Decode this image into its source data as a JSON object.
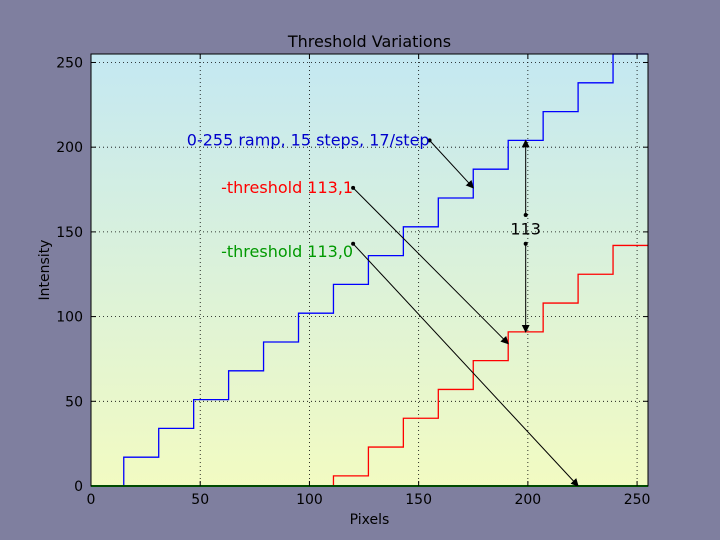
{
  "chart_data": {
    "type": "line",
    "title": "Threshold Variations",
    "xlabel": "Pixels",
    "ylabel": "Intensity",
    "xlim": [
      0,
      255
    ],
    "ylim": [
      0,
      255
    ],
    "xticks": [
      0,
      50,
      100,
      150,
      200,
      250
    ],
    "yticks": [
      0,
      50,
      100,
      150,
      200,
      250
    ],
    "grid": true,
    "background": {
      "top": "#c4e8f2",
      "bottom": "#f2fbc2"
    },
    "series": [
      {
        "name": "0-255 ramp, 15 steps, 17/step",
        "color": "#0000ff",
        "x": [
          0,
          15,
          15,
          31,
          31,
          47,
          47,
          63,
          63,
          79,
          79,
          95,
          95,
          111,
          111,
          127,
          127,
          143,
          143,
          159,
          159,
          175,
          175,
          191,
          191,
          207,
          207,
          223,
          223,
          239,
          239,
          255
        ],
        "y": [
          0,
          0,
          17,
          17,
          34,
          34,
          51,
          51,
          68,
          68,
          85,
          85,
          102,
          102,
          119,
          119,
          136,
          136,
          153,
          153,
          170,
          170,
          187,
          187,
          204,
          204,
          221,
          221,
          238,
          238,
          255,
          255
        ]
      },
      {
        "name": "-threshold 113,1",
        "color": "#ff0000",
        "x": [
          0,
          111,
          111,
          127,
          127,
          143,
          143,
          159,
          159,
          175,
          175,
          191,
          191,
          207,
          207,
          223,
          223,
          239,
          239,
          255
        ],
        "y": [
          0,
          0,
          6,
          6,
          23,
          23,
          40,
          40,
          57,
          57,
          74,
          74,
          91,
          91,
          108,
          108,
          125,
          125,
          142,
          142
        ]
      },
      {
        "name": "-threshold 113,0",
        "color": "#009900",
        "x": [
          0,
          255
        ],
        "y": [
          0,
          0
        ]
      }
    ],
    "annotations": [
      {
        "text": "0-255 ramp, 15 steps, 17/step",
        "color": "#0000cc",
        "text_xy": [
          155,
          204
        ],
        "arrow_from": [
          155,
          204
        ],
        "arrow_to": [
          175,
          176
        ]
      },
      {
        "text": "-threshold 113,1",
        "color": "#ff0000",
        "text_xy": [
          120,
          176
        ],
        "arrow_from": [
          120,
          176
        ],
        "arrow_to": [
          191,
          84
        ]
      },
      {
        "text": "-threshold 113,0",
        "color": "#009900",
        "text_xy": [
          120,
          138
        ],
        "arrow_from": [
          120,
          143
        ],
        "arrow_to": [
          223,
          0
        ]
      },
      {
        "text": "113",
        "color": "#000000",
        "text_xy": [
          199,
          151
        ],
        "arrow_from": [
          199,
          160
        ],
        "arrow_to": [
          199,
          204
        ]
      },
      {
        "text": "",
        "color": "#000000",
        "arrow_from": [
          199,
          143
        ],
        "arrow_to": [
          199,
          91
        ]
      }
    ]
  }
}
